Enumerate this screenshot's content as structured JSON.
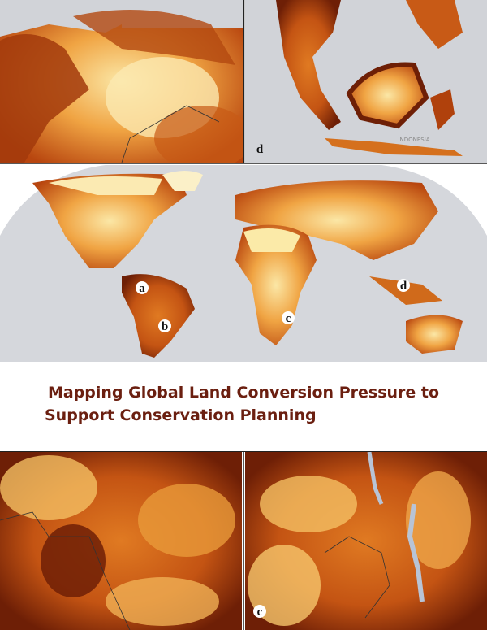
{
  "panels": {
    "top_right": {
      "label": "d",
      "country": "INDONESIA"
    },
    "bottom_right": {
      "label": "c"
    }
  },
  "world_map": {
    "labels": [
      "a",
      "b",
      "c",
      "d"
    ]
  },
  "title": {
    "lines": [
      "Mapping Global Land Conversion Pressure to",
      "Support Conservation Planning"
    ]
  }
}
